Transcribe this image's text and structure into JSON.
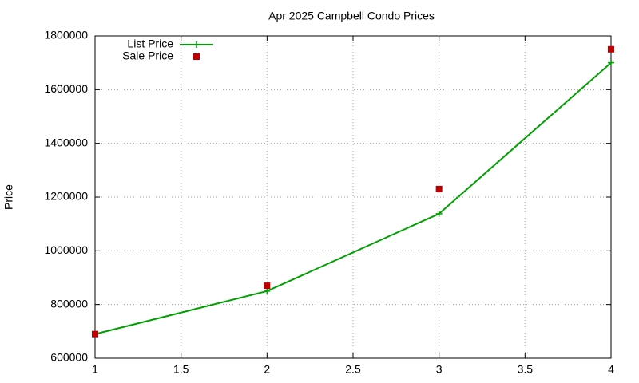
{
  "chart_data": {
    "type": "line",
    "title": "Apr 2025 Campbell Condo Prices",
    "y_label": "Price",
    "x": [
      1,
      2,
      3,
      4
    ],
    "series": [
      {
        "name": "List Price",
        "color": "#00a000",
        "values": [
          690000,
          850000,
          1138000,
          1700000
        ],
        "line": true,
        "marker": "plus"
      },
      {
        "name": "Sale Price",
        "color": "#c00000",
        "values": [
          690000,
          870000,
          1230000,
          1750000
        ],
        "line": false,
        "marker": "square"
      }
    ],
    "xlim": [
      1,
      4
    ],
    "xticks": [
      1,
      1.5,
      2,
      2.5,
      3,
      3.5,
      4
    ],
    "ylim": [
      600000,
      1800000
    ],
    "yticks": [
      600000,
      800000,
      1000000,
      1200000,
      1400000,
      1600000,
      1800000
    ],
    "grid": true,
    "legend": "top-left"
  }
}
